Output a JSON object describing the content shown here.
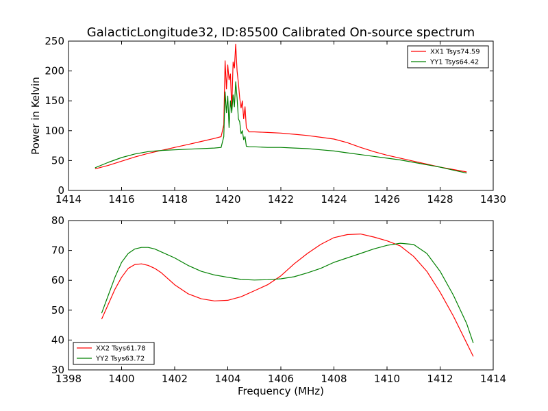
{
  "figure": {
    "title": "GalacticLongitude32, ID:85500 Calibrated On-source spectrum"
  },
  "chart_data": [
    {
      "type": "line",
      "title": "GalacticLongitude32, ID:85500 Calibrated On-source spectrum",
      "xlabel": "",
      "ylabel": "Power in Kelvin",
      "xlim": [
        1414,
        1430
      ],
      "ylim": [
        0,
        250
      ],
      "xticks": [
        1414,
        1416,
        1418,
        1420,
        1422,
        1424,
        1426,
        1428,
        1430
      ],
      "yticks": [
        0,
        50,
        100,
        150,
        200,
        250
      ],
      "grid": false,
      "legend_position": "top-right",
      "series": [
        {
          "name": "XX1 Tsys74.59",
          "color": "#ff0000",
          "x": [
            1415.0,
            1415.5,
            1416.0,
            1416.5,
            1417.0,
            1417.5,
            1418.0,
            1418.5,
            1419.0,
            1419.5,
            1419.75,
            1419.85,
            1419.9,
            1419.95,
            1420.0,
            1420.05,
            1420.1,
            1420.15,
            1420.2,
            1420.25,
            1420.3,
            1420.35,
            1420.4,
            1420.45,
            1420.5,
            1420.55,
            1420.6,
            1420.65,
            1420.7,
            1420.8,
            1421.0,
            1421.5,
            1422.0,
            1422.5,
            1423.0,
            1423.5,
            1424.0,
            1424.5,
            1425.0,
            1425.5,
            1426.0,
            1426.5,
            1427.0,
            1427.5,
            1428.0,
            1428.5,
            1429.0
          ],
          "y": [
            36,
            42,
            49,
            56,
            62,
            67,
            72,
            77,
            82,
            87,
            90,
            110,
            217,
            170,
            210,
            185,
            195,
            135,
            215,
            205,
            245,
            200,
            180,
            155,
            138,
            150,
            120,
            140,
            105,
            98,
            98,
            97,
            96,
            94,
            92,
            89,
            86,
            80,
            72,
            65,
            59,
            54,
            49,
            44,
            39,
            35,
            31
          ]
        },
        {
          "name": "YY1 Tsys64.42",
          "color": "#008000",
          "x": [
            1415.0,
            1415.5,
            1416.0,
            1416.5,
            1417.0,
            1417.5,
            1418.0,
            1418.5,
            1419.0,
            1419.5,
            1419.75,
            1419.85,
            1419.9,
            1419.95,
            1420.0,
            1420.05,
            1420.1,
            1420.15,
            1420.2,
            1420.25,
            1420.3,
            1420.35,
            1420.4,
            1420.45,
            1420.5,
            1420.55,
            1420.6,
            1420.65,
            1420.7,
            1420.8,
            1421.0,
            1421.5,
            1422.0,
            1422.5,
            1423.0,
            1423.5,
            1424.0,
            1424.5,
            1425.0,
            1425.5,
            1426.0,
            1426.5,
            1427.0,
            1427.5,
            1428.0,
            1428.5,
            1429.0
          ],
          "y": [
            38,
            47,
            55,
            61,
            65,
            67,
            68,
            69,
            70,
            71,
            72,
            90,
            165,
            130,
            158,
            105,
            150,
            130,
            160,
            140,
            182,
            155,
            120,
            115,
            95,
            100,
            85,
            90,
            74,
            73,
            73,
            72,
            72,
            71,
            70,
            68,
            66,
            63,
            60,
            57,
            54,
            51,
            47,
            43,
            39,
            34,
            29
          ]
        }
      ]
    },
    {
      "type": "line",
      "title": "",
      "xlabel": "Frequency (MHz)",
      "ylabel": "",
      "xlim": [
        1398,
        1414
      ],
      "ylim": [
        30,
        80
      ],
      "xticks": [
        1398,
        1400,
        1402,
        1404,
        1406,
        1408,
        1410,
        1412,
        1414
      ],
      "yticks": [
        30,
        40,
        50,
        60,
        70,
        80
      ],
      "grid": false,
      "legend_position": "bottom-left",
      "series": [
        {
          "name": "XX2 Tsys61.78",
          "color": "#ff0000",
          "x": [
            1399.25,
            1399.5,
            1399.75,
            1400.0,
            1400.25,
            1400.5,
            1400.75,
            1401.0,
            1401.25,
            1401.5,
            1402.0,
            1402.5,
            1403.0,
            1403.5,
            1404.0,
            1404.5,
            1405.0,
            1405.5,
            1406.0,
            1406.5,
            1407.0,
            1407.5,
            1408.0,
            1408.5,
            1409.0,
            1409.5,
            1410.0,
            1410.5,
            1411.0,
            1411.5,
            1412.0,
            1412.5,
            1413.0,
            1413.25
          ],
          "y": [
            47,
            52,
            57,
            61,
            64,
            65.3,
            65.5,
            65,
            64,
            62.5,
            58.5,
            55.5,
            53.8,
            53.1,
            53.3,
            54.5,
            56.5,
            58.5,
            61.5,
            65.5,
            69,
            72,
            74.3,
            75.3,
            75.5,
            74.5,
            73.2,
            71.5,
            68,
            63,
            56,
            48,
            39,
            34.5
          ]
        },
        {
          "name": "YY2 Tsys63.72",
          "color": "#008000",
          "x": [
            1399.25,
            1399.5,
            1399.75,
            1400.0,
            1400.25,
            1400.5,
            1400.75,
            1401.0,
            1401.25,
            1401.5,
            1402.0,
            1402.5,
            1403.0,
            1403.5,
            1404.0,
            1404.5,
            1405.0,
            1405.5,
            1406.0,
            1406.5,
            1407.0,
            1407.5,
            1408.0,
            1408.5,
            1409.0,
            1409.5,
            1410.0,
            1410.5,
            1411.0,
            1411.5,
            1412.0,
            1412.5,
            1413.0,
            1413.25
          ],
          "y": [
            49,
            55,
            61,
            66,
            69,
            70.5,
            71,
            71,
            70.5,
            69.5,
            67.5,
            65,
            63,
            61.8,
            61,
            60.3,
            60.1,
            60.2,
            60.5,
            61.2,
            62.5,
            64,
            66,
            67.5,
            69,
            70.5,
            71.7,
            72.4,
            72,
            69,
            63,
            55,
            45.5,
            39
          ]
        }
      ]
    }
  ]
}
